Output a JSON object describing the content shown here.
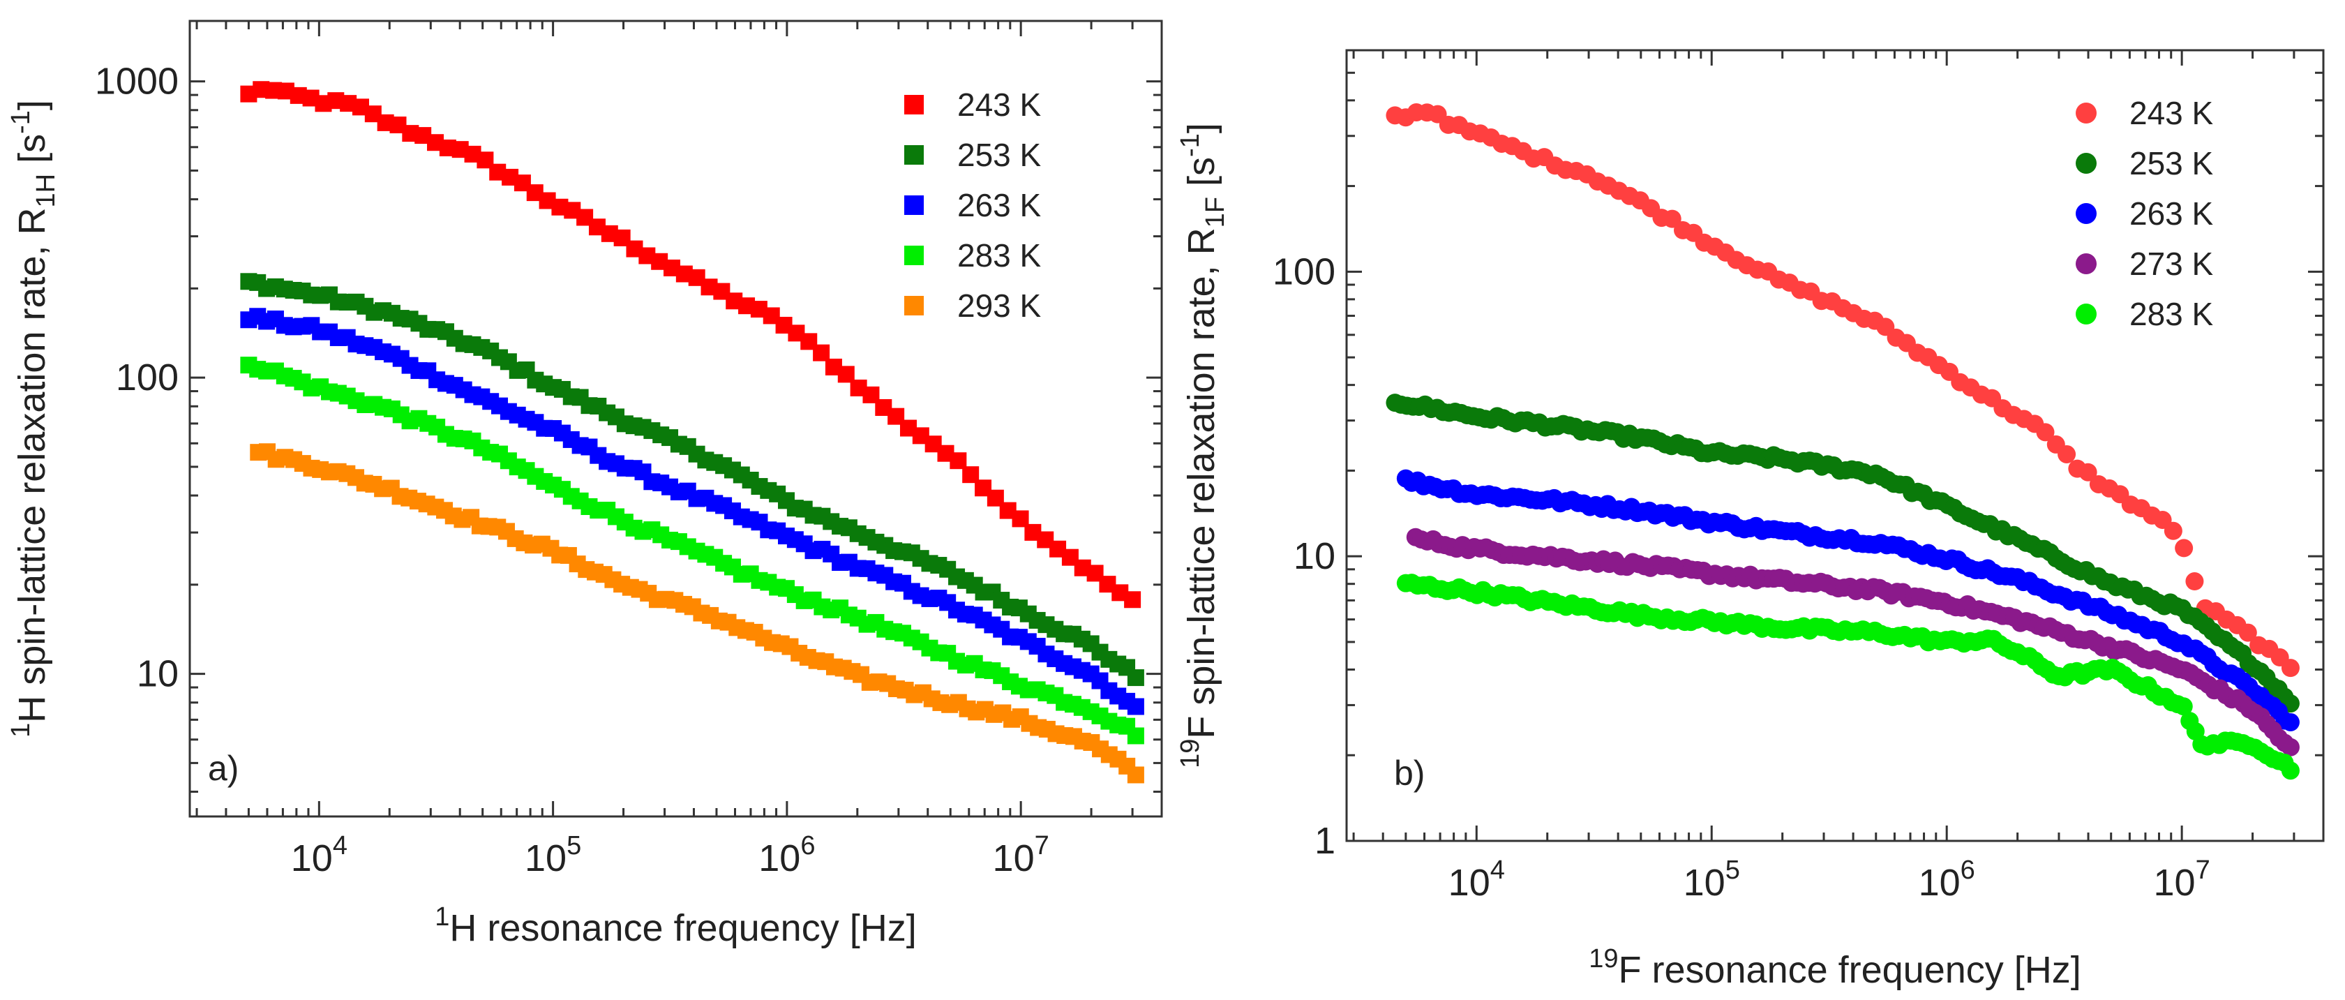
{
  "chart_data": [
    {
      "type": "scatter",
      "panel_label": "a)",
      "xlabel": {
        "sup": "1",
        "main": "H resonance frequency [Hz]"
      },
      "ylabel": {
        "sup": "1",
        "main": "H spin-lattice relaxation rate, R",
        "sub": "1H",
        "unit_open": " [s",
        "unit_sup": "-1",
        "unit_close": "]"
      },
      "xscale": "log",
      "yscale": "log",
      "xlim": [
        2800,
        40000000
      ],
      "ylim": [
        3.3,
        1600
      ],
      "x_ticks": [
        {
          "v": 10000,
          "base": "10",
          "exp": "4"
        },
        {
          "v": 100000,
          "base": "10",
          "exp": "5"
        },
        {
          "v": 1000000,
          "base": "10",
          "exp": "6"
        },
        {
          "v": 10000000,
          "base": "10",
          "exp": "7"
        }
      ],
      "y_ticks": [
        {
          "v": 10,
          "label": "10"
        },
        {
          "v": 100,
          "label": "100"
        },
        {
          "v": 1000,
          "label": "1000"
        }
      ],
      "marker": "square",
      "legend_position": "top-right",
      "grid": false,
      "series": [
        {
          "name": "243 K",
          "color": "#ff0000",
          "x_range": [
            5000,
            30000000
          ],
          "n": 72,
          "points": [
            [
              5000,
              900
            ],
            [
              5600,
              950
            ],
            [
              7000,
              910
            ],
            [
              10000,
              860
            ],
            [
              14000,
              830
            ],
            [
              20000,
              720
            ],
            [
              30000,
              640
            ],
            [
              50000,
              540
            ],
            [
              100000,
              390
            ],
            [
              200000,
              290
            ],
            [
              400000,
              215
            ],
            [
              1000000,
              150
            ],
            [
              2000000,
              95
            ],
            [
              3000000,
              72
            ],
            [
              4500000,
              58
            ],
            [
              7000000,
              43
            ],
            [
              10000000,
              33
            ],
            [
              20000000,
              22
            ],
            [
              30000000,
              17.5
            ]
          ]
        },
        {
          "name": "253 K",
          "color": "#0a7a0a",
          "x_range": [
            5000,
            31000000
          ],
          "n": 100,
          "points": [
            [
              5000,
              210
            ],
            [
              10000,
              190
            ],
            [
              20000,
              165
            ],
            [
              50000,
              125
            ],
            [
              100000,
              93
            ],
            [
              200000,
              72
            ],
            [
              500000,
              52
            ],
            [
              1000000,
              38
            ],
            [
              2000000,
              30
            ],
            [
              5000000,
              22
            ],
            [
              10000000,
              16.5
            ],
            [
              20000000,
              12.5
            ],
            [
              31000000,
              9.8
            ]
          ]
        },
        {
          "name": "263 K",
          "color": "#0000ff",
          "x_range": [
            5000,
            31000000
          ],
          "n": 100,
          "points": [
            [
              5000,
              160
            ],
            [
              10000,
              145
            ],
            [
              20000,
              120
            ],
            [
              50000,
              85
            ],
            [
              100000,
              66
            ],
            [
              200000,
              50
            ],
            [
              500000,
              37
            ],
            [
              1000000,
              29
            ],
            [
              2000000,
              23
            ],
            [
              5000000,
              17
            ],
            [
              10000000,
              13
            ],
            [
              20000000,
              10
            ],
            [
              31000000,
              7.6
            ]
          ]
        },
        {
          "name": "283 K",
          "color": "#00ee00",
          "x_range": [
            5000,
            31000000
          ],
          "n": 100,
          "points": [
            [
              5000,
              112
            ],
            [
              10000,
              92
            ],
            [
              20000,
              78
            ],
            [
              50000,
              58
            ],
            [
              100000,
              43
            ],
            [
              200000,
              33
            ],
            [
              500000,
              24
            ],
            [
              1000000,
              19
            ],
            [
              2000000,
              15.5
            ],
            [
              5000000,
              11.5
            ],
            [
              10000000,
              9.2
            ],
            [
              20000000,
              7.6
            ],
            [
              31000000,
              6.3
            ]
          ]
        },
        {
          "name": "293 K",
          "color": "#ff8800",
          "x_range": [
            5500,
            31000000
          ],
          "n": 100,
          "points": [
            [
              5500,
              56
            ],
            [
              10000,
              50
            ],
            [
              20000,
              42
            ],
            [
              50000,
              32
            ],
            [
              100000,
              26
            ],
            [
              200000,
              20
            ],
            [
              500000,
              15.5
            ],
            [
              1000000,
              12.2
            ],
            [
              2000000,
              9.8
            ],
            [
              5000000,
              8.0
            ],
            [
              10000000,
              7.0
            ],
            [
              20000000,
              5.8
            ],
            [
              31000000,
              4.6
            ]
          ]
        }
      ]
    },
    {
      "type": "scatter",
      "panel_label": "b)",
      "xlabel": {
        "sup": "19",
        "main": "F resonance frequency [Hz]"
      },
      "ylabel": {
        "sup": "19",
        "main": "F spin-lattice relaxation rate, R",
        "sub": "1F",
        "unit_open": " [s",
        "unit_sup": "-1",
        "unit_close": "]"
      },
      "xscale": "log",
      "yscale": "log",
      "xlim": [
        2800,
        40000000
      ],
      "ylim": [
        1,
        600
      ],
      "x_ticks": [
        {
          "v": 10000,
          "base": "10",
          "exp": "4"
        },
        {
          "v": 100000,
          "base": "10",
          "exp": "5"
        },
        {
          "v": 1000000,
          "base": "10",
          "exp": "6"
        },
        {
          "v": 10000000,
          "base": "10",
          "exp": "7"
        }
      ],
      "y_ticks": [
        {
          "v": 1,
          "label": "1"
        },
        {
          "v": 10,
          "label": "10"
        },
        {
          "v": 100,
          "label": "100"
        }
      ],
      "marker": "circle",
      "legend_position": "top-right",
      "grid": false,
      "series": [
        {
          "name": "243 K",
          "color": "#ff4040",
          "x_range": [
            4500,
            29000000
          ],
          "n": 85,
          "points": [
            [
              4500,
              350
            ],
            [
              6500,
              370
            ],
            [
              8000,
              325
            ],
            [
              10000,
              305
            ],
            [
              20000,
              245
            ],
            [
              30000,
              220
            ],
            [
              50000,
              175
            ],
            [
              100000,
              125
            ],
            [
              200000,
              92
            ],
            [
              300000,
              80
            ],
            [
              500000,
              66
            ],
            [
              1000000,
              45
            ],
            [
              1500000,
              36
            ],
            [
              2500000,
              28
            ],
            [
              3500000,
              21
            ],
            [
              5000000,
              17
            ],
            [
              8000000,
              13.5
            ],
            [
              10000000,
              11.5
            ],
            [
              12000000,
              6.8
            ],
            [
              20000000,
              5.2
            ],
            [
              29000000,
              4.0
            ]
          ]
        },
        {
          "name": "253 K",
          "color": "#0a7a0a",
          "x_range": [
            4500,
            29000000
          ],
          "n": 150,
          "points": [
            [
              4500,
              35
            ],
            [
              10000,
              31
            ],
            [
              20000,
              29
            ],
            [
              50000,
              26
            ],
            [
              100000,
              23
            ],
            [
              200000,
              22
            ],
            [
              500000,
              19.5
            ],
            [
              1000000,
              15
            ],
            [
              2000000,
              11.5
            ],
            [
              5000000,
              8
            ],
            [
              10000000,
              6.5
            ],
            [
              20000000,
              4.2
            ],
            [
              29000000,
              3.1
            ]
          ]
        },
        {
          "name": "263 K",
          "color": "#0000ff",
          "x_range": [
            5000,
            29000000
          ],
          "n": 150,
          "points": [
            [
              5000,
              18.5
            ],
            [
              10000,
              16.5
            ],
            [
              20000,
              15.8
            ],
            [
              50000,
              14.5
            ],
            [
              100000,
              13.2
            ],
            [
              200000,
              12.2
            ],
            [
              500000,
              11.2
            ],
            [
              1000000,
              9.8
            ],
            [
              2000000,
              8.3
            ],
            [
              5000000,
              6.3
            ],
            [
              10000000,
              5.0
            ],
            [
              20000000,
              3.4
            ],
            [
              29000000,
              2.6
            ]
          ]
        },
        {
          "name": "273 K",
          "color": "#8b1a8b",
          "x_range": [
            5500,
            29000000
          ],
          "n": 150,
          "points": [
            [
              5500,
              11.5
            ],
            [
              10000,
              10.6
            ],
            [
              20000,
              10.0
            ],
            [
              50000,
              9.3
            ],
            [
              100000,
              8.7
            ],
            [
              200000,
              8.2
            ],
            [
              500000,
              7.6
            ],
            [
              1000000,
              6.9
            ],
            [
              2000000,
              6.0
            ],
            [
              5000000,
              4.8
            ],
            [
              10000000,
              4.0
            ],
            [
              20000000,
              2.9
            ],
            [
              29000000,
              2.1
            ]
          ]
        },
        {
          "name": "283 K",
          "color": "#00ee00",
          "x_range": [
            5000,
            29000000
          ],
          "n": 150,
          "points": [
            [
              5000,
              8.0
            ],
            [
              10000,
              7.5
            ],
            [
              20000,
              6.9
            ],
            [
              50000,
              6.2
            ],
            [
              100000,
              5.9
            ],
            [
              200000,
              5.6
            ],
            [
              500000,
              5.4
            ],
            [
              1000000,
              5.0
            ],
            [
              1500000,
              5.1
            ],
            [
              2000000,
              4.6
            ],
            [
              3000000,
              3.8
            ],
            [
              5000000,
              4.0
            ],
            [
              10000000,
              3.0
            ],
            [
              12000000,
              2.2
            ],
            [
              20000000,
              2.2
            ],
            [
              29000000,
              1.8
            ]
          ]
        }
      ]
    }
  ]
}
